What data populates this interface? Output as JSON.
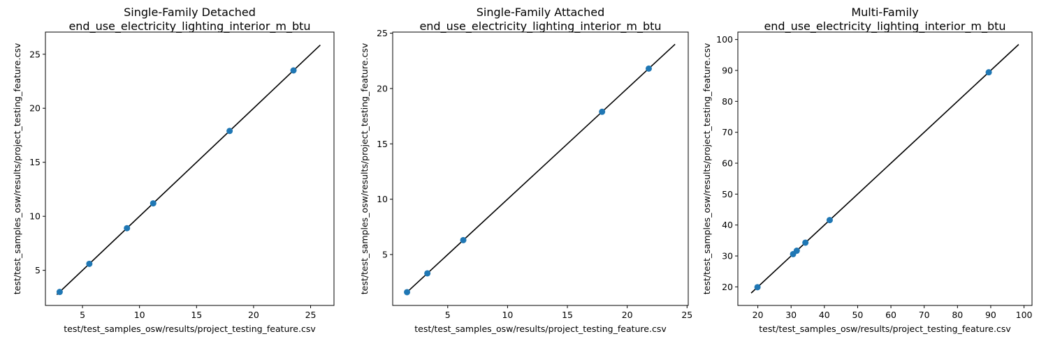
{
  "chart_data": [
    {
      "type": "scatter",
      "title": [
        "Single-Family Detached",
        "end_use_electricity_lighting_interior_m_btu"
      ],
      "xlabel": "test/test_samples_osw/results/project_testing_feature.csv",
      "ylabel": "test/test_samples_osw/results/project_testing_feature.csv",
      "xlim": [
        1.75,
        27.05
      ],
      "ylim": [
        1.75,
        27.05
      ],
      "xticks": [
        5,
        10,
        15,
        20,
        25
      ],
      "yticks": [
        5,
        10,
        15,
        20,
        25
      ],
      "line": [
        [
          2.75,
          2.75
        ],
        [
          25.85,
          25.85
        ]
      ],
      "points": [
        [
          3.0,
          3.0
        ],
        [
          5.6,
          5.6
        ],
        [
          8.9,
          8.9
        ],
        [
          11.2,
          11.2
        ],
        [
          17.9,
          17.9
        ],
        [
          23.5,
          23.5
        ]
      ],
      "marker_color": "#1f77b4",
      "line_color": "#000000",
      "grid": false
    },
    {
      "type": "scatter",
      "title": [
        "Single-Family Attached",
        "end_use_electricity_lighting_interior_m_btu"
      ],
      "xlabel": "test/test_samples_osw/results/project_testing_feature.csv",
      "ylabel": "test/test_samples_osw/results/project_testing_feature.csv",
      "xlim": [
        0.4,
        25.1
      ],
      "ylim": [
        0.4,
        25.1
      ],
      "xticks": [
        5,
        10,
        15,
        20,
        25
      ],
      "yticks": [
        5,
        10,
        15,
        20,
        25
      ],
      "line": [
        [
          1.5,
          1.5
        ],
        [
          24.0,
          24.0
        ]
      ],
      "points": [
        [
          1.6,
          1.6
        ],
        [
          3.3,
          3.3
        ],
        [
          6.3,
          6.3
        ],
        [
          17.9,
          17.9
        ],
        [
          21.8,
          21.8
        ]
      ],
      "marker_color": "#1f77b4",
      "line_color": "#000000",
      "grid": false
    },
    {
      "type": "scatter",
      "title": [
        "Multi-Family",
        "end_use_electricity_lighting_interior_m_btu"
      ],
      "xlabel": "test/test_samples_osw/results/project_testing_feature.csv",
      "ylabel": "test/test_samples_osw/results/project_testing_feature.csv",
      "xlim": [
        14.0,
        102.4
      ],
      "ylim": [
        14.0,
        102.4
      ],
      "xticks": [
        20,
        30,
        40,
        50,
        60,
        70,
        80,
        90,
        100
      ],
      "yticks": [
        20,
        30,
        40,
        50,
        60,
        70,
        80,
        90,
        100
      ],
      "line": [
        [
          18.0,
          18.0
        ],
        [
          98.4,
          98.4
        ]
      ],
      "points": [
        [
          19.9,
          19.9
        ],
        [
          30.6,
          30.6
        ],
        [
          31.7,
          31.7
        ],
        [
          34.3,
          34.3
        ],
        [
          41.6,
          41.6
        ],
        [
          89.4,
          89.4
        ]
      ],
      "marker_color": "#1f77b4",
      "line_color": "#000000",
      "grid": false
    }
  ]
}
